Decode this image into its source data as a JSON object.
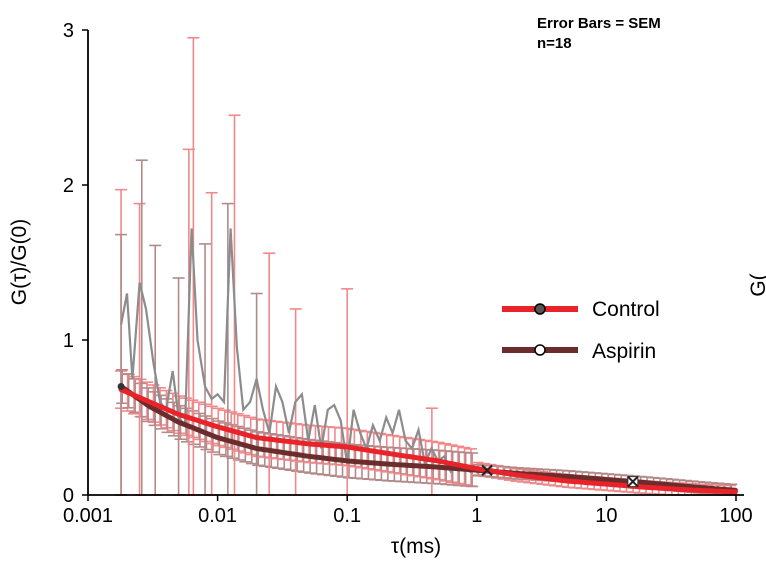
{
  "chart_data": {
    "type": "line",
    "xscale": "log",
    "xlim": [
      0.001,
      100
    ],
    "ylim": [
      0,
      3
    ],
    "xlabel": "τ(ms)",
    "ylabel": "G(τ)/G(0)",
    "x_ticks": [
      "0.001",
      "0.01",
      "0.1",
      "1",
      "10",
      "100"
    ],
    "y_ticks": [
      "0",
      "1",
      "2",
      "3"
    ],
    "annotations": [
      "Error Bars = SEM",
      "n=18"
    ],
    "right_edge_clipped_text": "G(",
    "legend": {
      "position": "right-center",
      "entries": [
        "Control",
        "Aspirin"
      ]
    },
    "colors": {
      "control_fit": "#e8232a",
      "control_raw": "#8c8c8c",
      "control_errorbar": "#f0898b",
      "aspirin_fit": "#6b2c2c",
      "aspirin_errorbar": "#b38a8a",
      "marker_fill_control": "#555555",
      "marker_fill_aspirin": "#ffffff"
    },
    "series": [
      {
        "name": "Control",
        "style": "fit",
        "marker": "x",
        "marker_x": 1.2,
        "x": [
          0.0018,
          0.003,
          0.005,
          0.01,
          0.02,
          0.05,
          0.1,
          0.2,
          0.5,
          1,
          2,
          5,
          10,
          20,
          50,
          100
        ],
        "y": [
          0.68,
          0.6,
          0.52,
          0.44,
          0.37,
          0.33,
          0.31,
          0.27,
          0.22,
          0.17,
          0.13,
          0.09,
          0.07,
          0.05,
          0.03,
          0.02
        ]
      },
      {
        "name": "Aspirin",
        "style": "fit",
        "marker": "x-box",
        "marker_x": 16,
        "x": [
          0.0018,
          0.003,
          0.005,
          0.01,
          0.02,
          0.05,
          0.1,
          0.2,
          0.5,
          1,
          2,
          5,
          10,
          20,
          50,
          100
        ],
        "y": [
          0.7,
          0.57,
          0.47,
          0.37,
          0.3,
          0.25,
          0.22,
          0.2,
          0.18,
          0.16,
          0.14,
          0.12,
          0.1,
          0.08,
          0.05,
          0.03
        ]
      },
      {
        "name": "Control raw",
        "style": "raw",
        "x": [
          0.0018,
          0.002,
          0.0022,
          0.0025,
          0.0028,
          0.0032,
          0.0036,
          0.004,
          0.0045,
          0.005,
          0.0056,
          0.0063,
          0.007,
          0.008,
          0.009,
          0.01,
          0.0112,
          0.0126,
          0.0141,
          0.0158,
          0.0178,
          0.02,
          0.0224,
          0.0251,
          0.0282,
          0.0316,
          0.0355,
          0.0398,
          0.0447,
          0.0501,
          0.0562,
          0.0631,
          0.0708,
          0.0794,
          0.0891,
          0.1,
          0.112,
          0.126,
          0.141,
          0.158,
          0.178,
          0.2,
          0.224,
          0.251,
          0.282,
          0.316,
          0.355,
          0.398,
          0.447,
          0.501,
          0.562,
          0.631,
          0.708,
          0.794,
          0.891,
          1.0
        ],
        "y": [
          1.1,
          1.3,
          0.75,
          1.37,
          1.2,
          0.85,
          0.6,
          0.55,
          0.8,
          0.5,
          0.45,
          1.72,
          1.0,
          0.7,
          0.62,
          0.65,
          0.6,
          1.72,
          0.95,
          0.55,
          0.6,
          0.75,
          0.55,
          0.4,
          0.7,
          0.6,
          0.4,
          0.6,
          0.65,
          0.35,
          0.58,
          0.3,
          0.55,
          0.58,
          0.48,
          0.2,
          0.55,
          0.4,
          0.3,
          0.45,
          0.35,
          0.5,
          0.4,
          0.55,
          0.35,
          0.3,
          0.42,
          0.2,
          0.3,
          0.22,
          0.25,
          0.15,
          0.2,
          0.18,
          0.15,
          0.18
        ]
      }
    ],
    "error_bars": {
      "control_high": [
        [
          0.0018,
          1.97
        ],
        [
          0.0025,
          1.88
        ],
        [
          0.006,
          2.23
        ],
        [
          0.0065,
          2.95
        ],
        [
          0.009,
          1.95
        ],
        [
          0.0135,
          2.45
        ],
        [
          0.025,
          1.56
        ],
        [
          0.04,
          1.2
        ],
        [
          0.1,
          1.33
        ],
        [
          0.45,
          0.56
        ]
      ],
      "aspirin_high": [
        [
          0.0018,
          1.68
        ],
        [
          0.0026,
          2.16
        ],
        [
          0.0033,
          1.61
        ],
        [
          0.005,
          1.4
        ],
        [
          0.008,
          1.62
        ],
        [
          0.012,
          1.88
        ],
        [
          0.02,
          1.3
        ]
      ]
    }
  }
}
